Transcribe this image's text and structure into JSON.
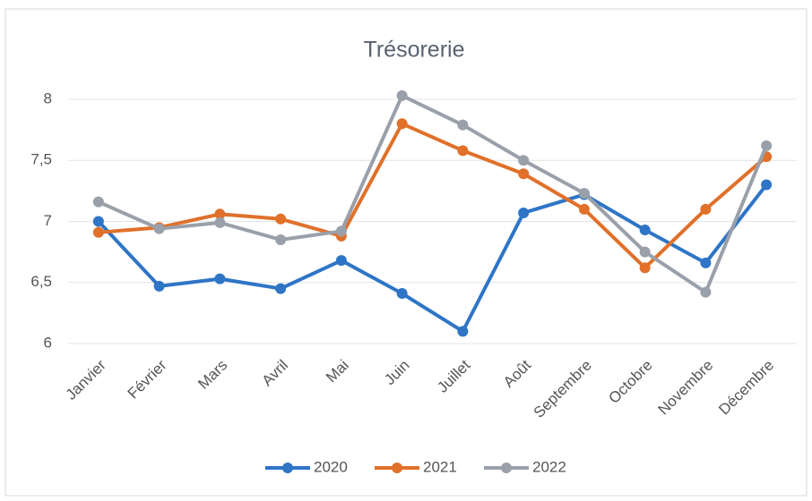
{
  "chart_data": {
    "type": "line",
    "title": "Trésorerie",
    "categories": [
      "Janvier",
      "Février",
      "Mars",
      "Avril",
      "Mai",
      "Juin",
      "Juillet",
      "Août",
      "Septembre",
      "Octobre",
      "Novembre",
      "Décembre"
    ],
    "series": [
      {
        "name": "2020",
        "color": "#2e75c6",
        "values": [
          7.0,
          6.47,
          6.53,
          6.45,
          6.68,
          6.41,
          6.1,
          7.07,
          7.22,
          6.93,
          6.66,
          7.3
        ]
      },
      {
        "name": "2021",
        "color": "#e0702a",
        "values": [
          6.91,
          6.95,
          7.06,
          7.02,
          6.88,
          7.8,
          7.58,
          7.39,
          7.1,
          6.62,
          7.1,
          7.53
        ]
      },
      {
        "name": "2022",
        "color": "#9aa0aa",
        "values": [
          7.16,
          6.94,
          6.99,
          6.85,
          6.92,
          8.03,
          7.79,
          7.5,
          7.23,
          6.75,
          6.42,
          7.62
        ]
      }
    ],
    "ylim": [
      6,
      8
    ],
    "yticks": [
      6,
      {
        "value": 6.5,
        "label": "6,5"
      },
      7,
      {
        "value": 7.5,
        "label": "7,5"
      },
      8
    ],
    "grid": true,
    "legend": "bottom"
  }
}
